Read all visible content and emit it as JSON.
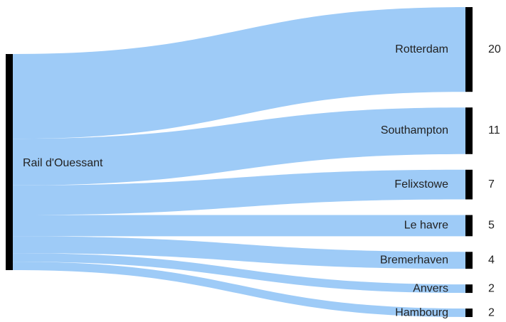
{
  "chart_data": {
    "type": "sankey",
    "source": "Rail d'Ouessant",
    "categories": [
      "Rotterdam",
      "Southampton",
      "Felixstowe",
      "Le havre",
      "Bremerhaven",
      "Anvers",
      "Hambourg"
    ],
    "values": [
      20,
      11,
      7,
      5,
      4,
      2,
      2
    ],
    "color": "#9ecbf7",
    "node_color": "#000000"
  }
}
